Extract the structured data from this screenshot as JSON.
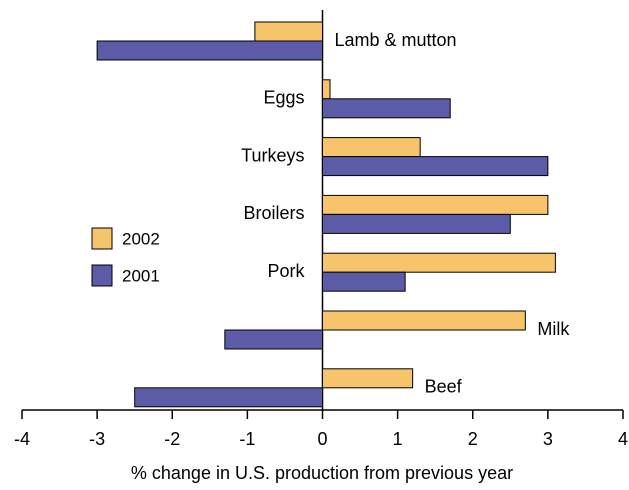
{
  "chart_data": {
    "type": "bar",
    "orientation": "horizontal",
    "xlabel": "% change in U.S. production from previous year",
    "categories": [
      "Lamb & mutton",
      "Eggs",
      "Turkeys",
      "Broilers",
      "Pork",
      "Milk",
      "Beef"
    ],
    "series": [
      {
        "name": "2002",
        "color": "#f7c46c",
        "values": [
          -0.9,
          0.1,
          1.3,
          3.0,
          3.1,
          2.7,
          1.2
        ]
      },
      {
        "name": "2001",
        "color": "#5b5ba7",
        "values": [
          -3.0,
          1.7,
          3.0,
          2.5,
          1.1,
          -1.3,
          -2.5
        ]
      }
    ],
    "xlim": [
      -4,
      4
    ],
    "xticks": [
      -4,
      -3,
      -2,
      -1,
      0,
      1,
      2,
      3,
      4
    ],
    "grid": false
  }
}
